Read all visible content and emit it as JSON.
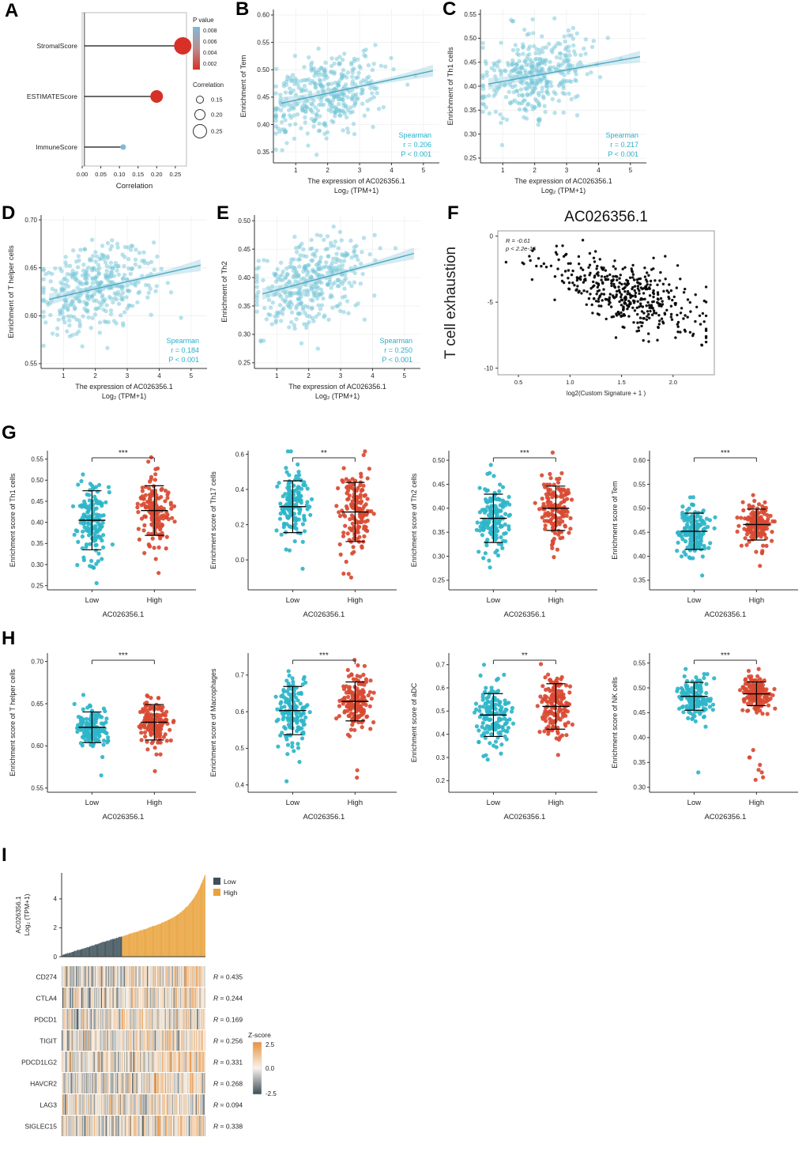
{
  "letters": {
    "A": "A",
    "B": "B",
    "C": "C",
    "D": "D",
    "E": "E",
    "F": "F",
    "G": "G",
    "H": "H",
    "I": "I"
  },
  "chart_data": [
    {
      "id": "A",
      "type": "lollipop",
      "title": "",
      "xlabel": "Correlation",
      "x_max": 0.28,
      "x_ticks": [
        0.0,
        0.05,
        0.1,
        0.15,
        0.2,
        0.25
      ],
      "items": [
        {
          "label": "StromalScore",
          "value": 0.27,
          "color": "#d73027",
          "size": 11
        },
        {
          "label": "ESTIMATEScore",
          "value": 0.2,
          "color": "#d73027",
          "size": 8
        },
        {
          "label": "ImmuneScore",
          "value": 0.11,
          "color": "#7fb9d8",
          "size": 3.5
        }
      ],
      "legend_p": {
        "title": "P value",
        "ticks": [
          "0.008",
          "0.006",
          "0.004",
          "0.002"
        ],
        "colors": [
          "#7fb9d8",
          "#b98f8f",
          "#d73027"
        ]
      },
      "legend_size": {
        "title": "Correlation",
        "entries": [
          {
            "label": "0.15",
            "r": 4.5
          },
          {
            "label": "0.20",
            "r": 6.5
          },
          {
            "label": "0.25",
            "r": 8.5
          }
        ]
      }
    },
    {
      "id": "B",
      "type": "scatter",
      "n": 380,
      "seed": 101,
      "ylabel": "Enrichment of Tem",
      "xlabel1": "The expression of AC026356.1",
      "xlabel2": "Log₂ (TPM+1)",
      "x_range": [
        0.3,
        5.5
      ],
      "x_ticks": [
        1,
        2,
        3,
        4,
        5
      ],
      "y_range": [
        0.33,
        0.61
      ],
      "y_ticks": [
        0.35,
        0.4,
        0.45,
        0.5,
        0.55,
        0.6
      ],
      "y_dec": 2,
      "stats": {
        "method": "Spearman",
        "r": "r = 0.206",
        "p": "P < 0.001"
      },
      "gen": {
        "x_mean": 2.0,
        "x_sd": 0.85,
        "intercept": 0.432,
        "slope": 0.0125,
        "noise": 0.037
      },
      "point_color": "#74c5d8",
      "line_color": "#4fa8c2",
      "band_color": "#a9d7e3",
      "stats_color": "#29b0cb"
    },
    {
      "id": "C",
      "type": "scatter",
      "n": 380,
      "seed": 102,
      "ylabel": "Enrichment of Th1 cells",
      "xlabel1": "The expression of AC026356.1",
      "xlabel2": "Log₂ (TPM+1)",
      "x_range": [
        0.3,
        5.5
      ],
      "x_ticks": [
        1,
        2,
        3,
        4,
        5
      ],
      "y_range": [
        0.24,
        0.56
      ],
      "y_ticks": [
        0.25,
        0.3,
        0.35,
        0.4,
        0.45,
        0.5,
        0.55
      ],
      "y_dec": 2,
      "stats": {
        "method": "Spearman",
        "r": "r = 0.217",
        "p": "P < 0.001"
      },
      "gen": {
        "x_mean": 2.0,
        "x_sd": 0.85,
        "intercept": 0.398,
        "slope": 0.012,
        "noise": 0.042
      },
      "point_color": "#74c5d8",
      "line_color": "#4fa8c2",
      "band_color": "#a9d7e3",
      "stats_color": "#29b0cb"
    },
    {
      "id": "D",
      "type": "scatter",
      "n": 380,
      "seed": 103,
      "ylabel": "Enrichment of T helper cells",
      "xlabel1": "The expression of AC026356.1",
      "xlabel2": "Log₂ (TPM+1)",
      "x_range": [
        0.3,
        5.5
      ],
      "x_ticks": [
        1,
        2,
        3,
        4,
        5
      ],
      "y_range": [
        0.545,
        0.705
      ],
      "y_ticks": [
        0.55,
        0.6,
        0.65,
        0.7
      ],
      "y_dec": 2,
      "stats": {
        "method": "Spearman",
        "r": "r = 0.184",
        "p": "P < 0.001"
      },
      "gen": {
        "x_mean": 2.0,
        "x_sd": 0.85,
        "intercept": 0.613,
        "slope": 0.0075,
        "noise": 0.021
      },
      "point_color": "#74c5d8",
      "line_color": "#4fa8c2",
      "band_color": "#a9d7e3",
      "stats_color": "#29b0cb"
    },
    {
      "id": "E",
      "type": "scatter",
      "n": 380,
      "seed": 104,
      "ylabel": "Enrichment of Th2",
      "xlabel1": "The expression of AC026356.1",
      "xlabel2": "Log₂ (TPM+1)",
      "x_range": [
        0.3,
        5.5
      ],
      "x_ticks": [
        1,
        2,
        3,
        4,
        5
      ],
      "y_range": [
        0.24,
        0.51
      ],
      "y_ticks": [
        0.25,
        0.3,
        0.35,
        0.4,
        0.45,
        0.5
      ],
      "y_dec": 2,
      "stats": {
        "method": "Spearman",
        "r": "r = 0.250",
        "p": "P < 0.001"
      },
      "gen": {
        "x_mean": 2.0,
        "x_sd": 0.85,
        "intercept": 0.363,
        "slope": 0.015,
        "noise": 0.036
      },
      "point_color": "#74c5d8",
      "line_color": "#4fa8c2",
      "band_color": "#a9d7e3",
      "stats_color": "#29b0cb"
    },
    {
      "id": "F",
      "type": "exhaustion",
      "n": 430,
      "seed": 105,
      "title": "AC026356.1",
      "ylabel": "T cell exhaustion",
      "xlabel": "log2(Custom Signature + 1 )",
      "annotation": [
        "R = -0.61",
        "p < 2.2e-16"
      ],
      "x_range": [
        0.3,
        2.4
      ],
      "x_ticks": [
        0.5,
        1.0,
        1.5,
        2.0
      ],
      "y_range": [
        -10.5,
        0.4
      ],
      "y_ticks": [
        0,
        -5,
        -10
      ],
      "gen": {
        "x_mean": 1.55,
        "x_sd": 0.37,
        "intercept": -0.2,
        "slope": -2.7,
        "noise": 1.25
      },
      "point_color": "#000000"
    },
    {
      "id": "G1",
      "type": "jitter",
      "sig": "***",
      "xlabel": "AC026356.1",
      "ylabel": "Enrichment score of Th1 cells",
      "y_range": [
        0.24,
        0.57
      ],
      "y_ticks": [
        0.25,
        0.3,
        0.35,
        0.4,
        0.45,
        0.5,
        0.55
      ],
      "y_dec": 2,
      "groups": [
        {
          "label": "Low",
          "color": "#2eb5c9",
          "mean": 0.405,
          "sd": 0.05,
          "n": 150,
          "seed": 201,
          "outliers": []
        },
        {
          "label": "High",
          "color": "#d94a32",
          "mean": 0.428,
          "sd": 0.042,
          "n": 155,
          "seed": 202,
          "outliers": [
            0.28
          ]
        }
      ]
    },
    {
      "id": "G2",
      "type": "jitter",
      "sig": "**",
      "xlabel": "AC026356.1",
      "ylabel": "Enrichment score of Th17 cells",
      "y_range": [
        -0.17,
        0.62
      ],
      "y_ticks": [
        0.0,
        0.2,
        0.4,
        0.6
      ],
      "y_dec": 1,
      "groups": [
        {
          "label": "Low",
          "color": "#2eb5c9",
          "mean": 0.302,
          "sd": 0.105,
          "n": 150,
          "seed": 203,
          "outliers": [
            -0.05
          ]
        },
        {
          "label": "High",
          "color": "#d94a32",
          "mean": 0.272,
          "sd": 0.12,
          "n": 155,
          "seed": 204,
          "outliers": [
            -0.08,
            -0.1
          ]
        }
      ]
    },
    {
      "id": "G3",
      "type": "jitter",
      "sig": "***",
      "xlabel": "AC026356.1",
      "ylabel": "Enrichment score of Th2 cells",
      "y_range": [
        0.23,
        0.52
      ],
      "y_ticks": [
        0.25,
        0.3,
        0.35,
        0.4,
        0.45,
        0.5
      ],
      "y_dec": 2,
      "groups": [
        {
          "label": "Low",
          "color": "#2eb5c9",
          "mean": 0.379,
          "sd": 0.036,
          "n": 150,
          "seed": 205,
          "outliers": []
        },
        {
          "label": "High",
          "color": "#d94a32",
          "mean": 0.4,
          "sd": 0.033,
          "n": 155,
          "seed": 206,
          "outliers": []
        }
      ]
    },
    {
      "id": "G4",
      "type": "jitter",
      "sig": "***",
      "xlabel": "AC026356.1",
      "ylabel": "Enrichment score of Tem",
      "y_range": [
        0.33,
        0.62
      ],
      "y_ticks": [
        0.35,
        0.4,
        0.45,
        0.5,
        0.55,
        0.6
      ],
      "y_dec": 2,
      "groups": [
        {
          "label": "Low",
          "color": "#2eb5c9",
          "mean": 0.452,
          "sd": 0.027,
          "n": 150,
          "seed": 207,
          "outliers": [
            0.36
          ]
        },
        {
          "label": "High",
          "color": "#d94a32",
          "mean": 0.466,
          "sd": 0.023,
          "n": 155,
          "seed": 208,
          "outliers": [
            0.38
          ]
        }
      ]
    },
    {
      "id": "H1",
      "type": "jitter",
      "sig": "***",
      "xlabel": "AC026356.1",
      "ylabel": "Enrichment score of T helper cells",
      "y_range": [
        0.545,
        0.71
      ],
      "y_ticks": [
        0.55,
        0.6,
        0.65,
        0.7
      ],
      "y_dec": 2,
      "groups": [
        {
          "label": "Low",
          "color": "#2eb5c9",
          "mean": 0.622,
          "sd": 0.013,
          "n": 150,
          "seed": 209,
          "outliers": [
            0.565
          ]
        },
        {
          "label": "High",
          "color": "#d94a32",
          "mean": 0.628,
          "sd": 0.015,
          "n": 155,
          "seed": 210,
          "outliers": [
            0.57
          ]
        }
      ]
    },
    {
      "id": "H2",
      "type": "jitter",
      "sig": "***",
      "xlabel": "AC026356.1",
      "ylabel": "Enrichment score of Macrophages",
      "y_range": [
        0.38,
        0.76
      ],
      "y_ticks": [
        0.4,
        0.5,
        0.6,
        0.7
      ],
      "y_dec": 1,
      "groups": [
        {
          "label": "Low",
          "color": "#2eb5c9",
          "mean": 0.603,
          "sd": 0.047,
          "n": 150,
          "seed": 211,
          "outliers": [
            0.41
          ]
        },
        {
          "label": "High",
          "color": "#d94a32",
          "mean": 0.628,
          "sd": 0.038,
          "n": 155,
          "seed": 212,
          "outliers": [
            0.42,
            0.44
          ]
        }
      ]
    },
    {
      "id": "H3",
      "type": "jitter",
      "sig": "**",
      "xlabel": "AC026356.1",
      "ylabel": "Enrichment score of aDC",
      "y_range": [
        0.15,
        0.75
      ],
      "y_ticks": [
        0.2,
        0.3,
        0.4,
        0.5,
        0.6,
        0.7
      ],
      "y_dec": 1,
      "groups": [
        {
          "label": "Low",
          "color": "#2eb5c9",
          "mean": 0.483,
          "sd": 0.066,
          "n": 150,
          "seed": 213,
          "outliers": [
            0.7
          ]
        },
        {
          "label": "High",
          "color": "#d94a32",
          "mean": 0.52,
          "sd": 0.07,
          "n": 155,
          "seed": 214,
          "outliers": []
        }
      ]
    },
    {
      "id": "H4",
      "type": "jitter",
      "sig": "***",
      "xlabel": "AC026356.1",
      "ylabel": "Enrichment score of NK cells",
      "y_range": [
        0.29,
        0.57
      ],
      "y_ticks": [
        0.3,
        0.35,
        0.4,
        0.45,
        0.5,
        0.55
      ],
      "y_dec": 2,
      "groups": [
        {
          "label": "Low",
          "color": "#2eb5c9",
          "mean": 0.483,
          "sd": 0.02,
          "n": 150,
          "seed": 215,
          "outliers": [
            0.33
          ]
        },
        {
          "label": "High",
          "color": "#d94a32",
          "mean": 0.488,
          "sd": 0.017,
          "n": 155,
          "seed": 216,
          "outliers": [
            0.315,
            0.33,
            0.345,
            0.36,
            0.375,
            0.335,
            0.36,
            0.32
          ]
        }
      ]
    },
    {
      "id": "I",
      "type": "bar_heatmap",
      "n": 200,
      "seed": 300,
      "bar": {
        "ylabel1": "AC026356.1",
        "ylabel2": "Log₂ (TPM+1)",
        "y_ticks": [
          0,
          2,
          4
        ],
        "y_max": 5.8,
        "low_frac": 0.42,
        "low_color": "#3e5059",
        "high_color": "#e9a23b",
        "legend": {
          "low": "Low",
          "high": "High"
        }
      },
      "heatmap": {
        "rows": [
          {
            "gene": "CD274",
            "r": 0.435,
            "r_label": "R = 0.435"
          },
          {
            "gene": "CTLA4",
            "r": 0.244,
            "r_label": "R = 0.244"
          },
          {
            "gene": "PDCD1",
            "r": 0.169,
            "r_label": "R = 0.169"
          },
          {
            "gene": "TIGIT",
            "r": 0.256,
            "r_label": "R = 0.256"
          },
          {
            "gene": "PDCD1LG2",
            "r": 0.331,
            "r_label": "R = 0.331"
          },
          {
            "gene": "HAVCR2",
            "r": 0.268,
            "r_label": "R = 0.268"
          },
          {
            "gene": "LAG3",
            "r": 0.094,
            "r_label": "R = 0.094"
          },
          {
            "gene": "SIGLEC15",
            "r": 0.338,
            "r_label": "R = 0.338"
          }
        ],
        "zscore_legend": {
          "title": "Z-score",
          "ticks": [
            "2.5",
            "0.0",
            "-2.5"
          ],
          "colors": [
            "#e8913c",
            "#f8f3ec",
            "#3b4d57"
          ]
        }
      }
    }
  ]
}
